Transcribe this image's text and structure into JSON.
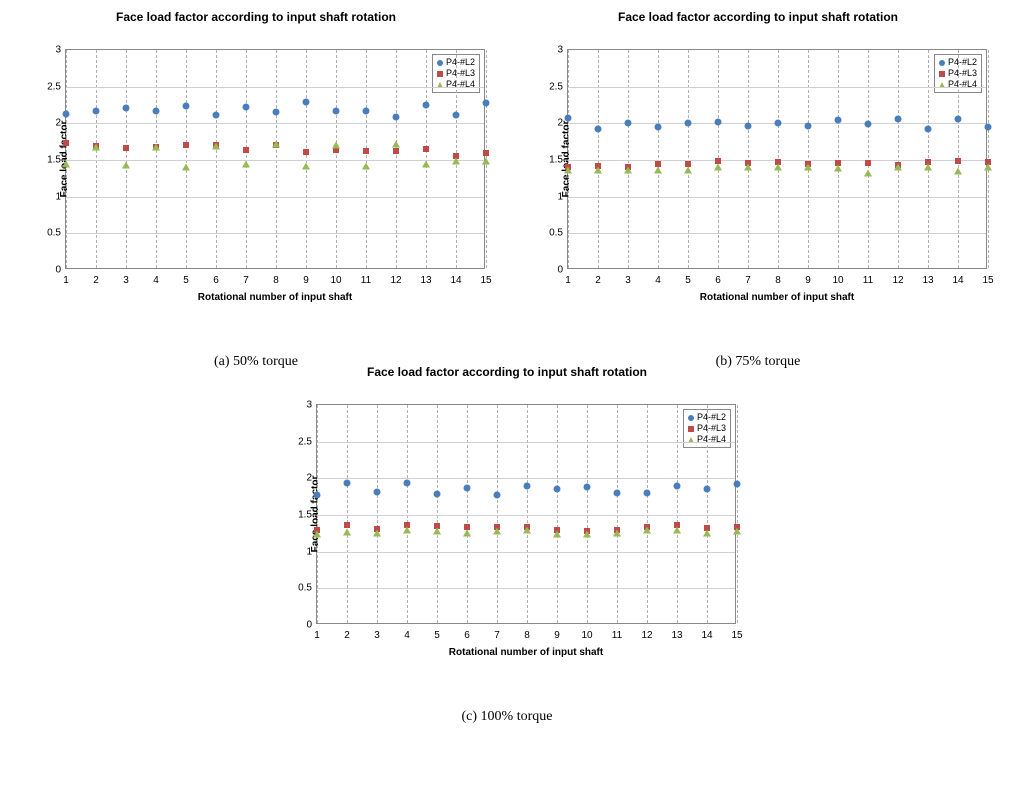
{
  "charts": [
    {
      "id": "a",
      "title": "Face load factor according to input shaft rotation",
      "caption": "(a) 50% torque",
      "x_axis_title": "Rotational number of input shaft",
      "y_axis_title": "Face load factor",
      "xlim": [
        1,
        15
      ],
      "ylim": [
        0,
        3
      ],
      "ytick_step": 0.5,
      "x_ticks": [
        1,
        2,
        3,
        4,
        5,
        6,
        7,
        8,
        9,
        10,
        11,
        12,
        13,
        14,
        15
      ],
      "background_color": "#ffffff",
      "grid_color": "#b0b0b0",
      "title_fontsize": 12,
      "label_fontsize": 10,
      "tick_fontsize": 10,
      "legend_position": "top-right",
      "series": [
        {
          "label": "P4-#L2",
          "marker": "circle",
          "color": "#4a7ebb",
          "values": [
            2.13,
            2.17,
            2.21,
            2.17,
            2.23,
            2.11,
            2.22,
            2.15,
            2.29,
            2.17,
            2.17,
            2.08,
            2.25,
            2.11,
            2.28
          ]
        },
        {
          "label": "P4-#L3",
          "marker": "square",
          "color": "#be4b48",
          "values": [
            1.73,
            1.69,
            1.66,
            1.68,
            1.71,
            1.71,
            1.64,
            1.71,
            1.61,
            1.63,
            1.62,
            1.62,
            1.65,
            1.55,
            1.6
          ]
        },
        {
          "label": "P4-#L4",
          "marker": "triangle",
          "color": "#98b954",
          "values": [
            1.45,
            1.68,
            1.43,
            1.68,
            1.41,
            1.69,
            1.44,
            1.72,
            1.42,
            1.7,
            1.42,
            1.72,
            1.45,
            1.49,
            1.48
          ]
        }
      ]
    },
    {
      "id": "b",
      "title": "Face load factor according to input shaft rotation",
      "caption": "(b) 75% torque",
      "x_axis_title": "Rotational number of input shaft",
      "y_axis_title": "Face load factor",
      "xlim": [
        1,
        15
      ],
      "ylim": [
        0,
        3
      ],
      "ytick_step": 0.5,
      "x_ticks": [
        1,
        2,
        3,
        4,
        5,
        6,
        7,
        8,
        9,
        10,
        11,
        12,
        13,
        14,
        15
      ],
      "background_color": "#ffffff",
      "grid_color": "#b0b0b0",
      "title_fontsize": 12,
      "label_fontsize": 10,
      "tick_fontsize": 10,
      "legend_position": "top-right",
      "series": [
        {
          "label": "P4-#L2",
          "marker": "circle",
          "color": "#4a7ebb",
          "values": [
            2.07,
            1.92,
            2.0,
            1.95,
            2.0,
            2.02,
            1.96,
            2.0,
            1.97,
            2.05,
            1.99,
            2.06,
            1.92,
            2.06,
            1.95
          ]
        },
        {
          "label": "P4-#L3",
          "marker": "square",
          "color": "#be4b48",
          "values": [
            1.4,
            1.42,
            1.4,
            1.45,
            1.44,
            1.48,
            1.46,
            1.47,
            1.45,
            1.46,
            1.46,
            1.43,
            1.47,
            1.48,
            1.47
          ]
        },
        {
          "label": "P4-#L4",
          "marker": "triangle",
          "color": "#98b954",
          "values": [
            1.36,
            1.36,
            1.36,
            1.37,
            1.37,
            1.4,
            1.4,
            1.4,
            1.4,
            1.39,
            1.32,
            1.4,
            1.4,
            1.35,
            1.4
          ]
        }
      ]
    },
    {
      "id": "c",
      "title": "Face load factor according to input shaft rotation",
      "caption": "(c) 100% torque",
      "x_axis_title": "Rotational number of input shaft",
      "y_axis_title": "Face load factor",
      "xlim": [
        1,
        15
      ],
      "ylim": [
        0,
        3
      ],
      "ytick_step": 0.5,
      "x_ticks": [
        1,
        2,
        3,
        4,
        5,
        6,
        7,
        8,
        9,
        10,
        11,
        12,
        13,
        14,
        15
      ],
      "background_color": "#ffffff",
      "grid_color": "#b0b0b0",
      "title_fontsize": 12,
      "label_fontsize": 10,
      "tick_fontsize": 10,
      "legend_position": "top-right",
      "series": [
        {
          "label": "P4-#L2",
          "marker": "circle",
          "color": "#4a7ebb",
          "values": [
            1.77,
            1.93,
            1.82,
            1.94,
            1.79,
            1.87,
            1.77,
            1.9,
            1.85,
            1.88,
            1.8,
            1.8,
            1.89,
            1.85,
            1.92
          ]
        },
        {
          "label": "P4-#L3",
          "marker": "square",
          "color": "#be4b48",
          "values": [
            1.29,
            1.36,
            1.31,
            1.36,
            1.35,
            1.33,
            1.33,
            1.34,
            1.3,
            1.28,
            1.29,
            1.34,
            1.37,
            1.32,
            1.33
          ]
        },
        {
          "label": "P4-#L4",
          "marker": "triangle",
          "color": "#98b954",
          "values": [
            1.24,
            1.27,
            1.26,
            1.29,
            1.28,
            1.26,
            1.28,
            1.3,
            1.24,
            1.24,
            1.25,
            1.29,
            1.3,
            1.26,
            1.28
          ]
        }
      ]
    }
  ]
}
